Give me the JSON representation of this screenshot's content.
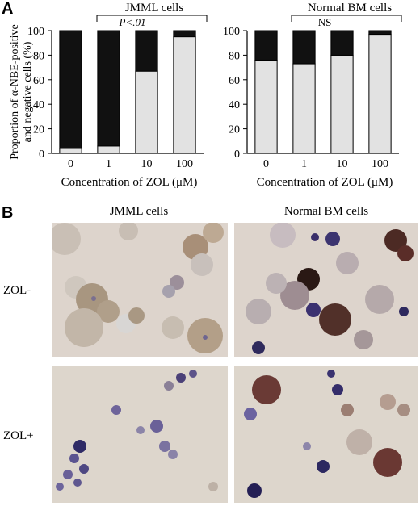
{
  "panel_a_label": "A",
  "panel_b_label": "B",
  "chart_data": [
    {
      "type": "bar",
      "stacked": true,
      "title": "JMML cells",
      "annotation": "P<.01",
      "categories": [
        "0",
        "1",
        "10",
        "100"
      ],
      "series": [
        {
          "values": [
            4,
            6,
            67,
            95
          ],
          "color": "#e2e2e2"
        },
        {
          "values": [
            96,
            94,
            33,
            5
          ],
          "color": "#111111"
        }
      ],
      "xlabel": "Concentration of  ZOL (μM)",
      "ylabel_line1": "Proportion of α-NBE-positive",
      "ylabel_line2": "and negative cells (%)",
      "ylim": [
        0,
        100
      ],
      "yticks": [
        "0",
        "20",
        "40",
        "60",
        "80",
        "100"
      ]
    },
    {
      "type": "bar",
      "stacked": true,
      "title": "Normal BM cells",
      "annotation": "NS",
      "categories": [
        "0",
        "1",
        "10",
        "100"
      ],
      "series": [
        {
          "values": [
            76,
            73,
            80,
            97
          ],
          "color": "#e2e2e2"
        },
        {
          "values": [
            24,
            27,
            20,
            3
          ],
          "color": "#111111"
        }
      ],
      "xlabel": "Concentration of  ZOL (μM)",
      "ylim": [
        0,
        100
      ],
      "yticks": [
        "0",
        "20",
        "40",
        "60",
        "80",
        "100"
      ]
    }
  ],
  "panel_b": {
    "col_titles": [
      "JMML cells",
      "Normal BM cells"
    ],
    "row_labels": [
      "ZOL-",
      "ZOL+"
    ]
  }
}
